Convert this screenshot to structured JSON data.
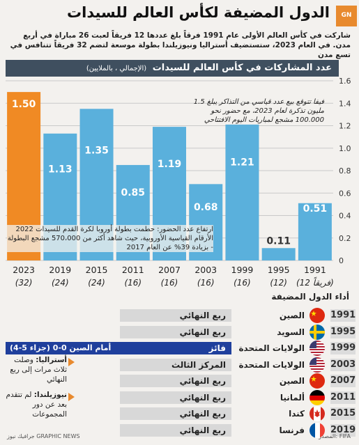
{
  "header": {
    "logo_text": "GN",
    "title": "الدول المضيفة لكأس العالم للسيدات",
    "subtitle": "شاركت في كأس العالم الأولى عام 1991 فرقاً بلغ عددها 12 فريقاً لعبت 26 مباراة في أربع مدن. في العام 2023، ستستضيف أستراليا ونيوزيلندا بطولة موسعة لتضم 32 فريقاً تتنافس في تسع مدن"
  },
  "chart_header": {
    "title": "عدد المشاركات في كأس العالم للسيدات",
    "units": "(الإجمالي ، بالملايين)"
  },
  "chart_data": {
    "type": "bar",
    "title": "عدد المشاركات في كأس العالم للسيدات",
    "ylabel": "(الإجمالي ، بالملايين)",
    "categories": [
      "2023",
      "2019",
      "2015",
      "2011",
      "2007",
      "2003",
      "1999",
      "1995",
      "1991"
    ],
    "teams": [
      "(32)",
      "(24)",
      "(24)",
      "(16)",
      "(16)",
      "(16)",
      "(16)",
      "(12)",
      "(12 فريقاً)"
    ],
    "values": [
      1.5,
      1.13,
      1.35,
      0.85,
      1.19,
      0.68,
      1.21,
      0.11,
      0.51
    ],
    "labels": [
      "1.50",
      "1.13",
      "1.35",
      "0.85",
      "1.19",
      "0.68",
      "1.21",
      "0.11",
      "0.51"
    ],
    "yticks": [
      "0",
      "0.2",
      "0.4",
      "0.6",
      "0.8",
      "1.0",
      "1.2",
      "1.4",
      "1.6"
    ],
    "ylim": [
      0,
      1.6
    ],
    "grid": true,
    "colors": {
      "highlight": "#f08a24",
      "bar": "#5ab0dc",
      "small_label": "#333333",
      "header_bg": "#3f4f5f"
    }
  },
  "annotations": {
    "tickets": "فيفا تتوقع بيع عدد قياسي من التذاكر يبلغ 1.5 مليون تذكرة لعام 2023، مع حضور نحو 100.000 مشجع لمباريات اليوم الافتتاحي",
    "euro": "ارتفاع عدد الحضور: حطمت بطولة أوروبا لكرة القدم للسيدات 2022 الأرقام القياسية الأوروبية، حيث شاهد أكثر من 570،000 مشجع البطولة - بزيادة 39% عن العام 2017"
  },
  "performance": {
    "header": "أداء الدول المضيفة",
    "rows": [
      {
        "year": "1991",
        "host": "الصين",
        "result": "ربع النهائي",
        "flag": "china"
      },
      {
        "year": "1995",
        "host": "السويد",
        "result": "ربع النهائي",
        "flag": "sweden"
      },
      {
        "year": "1999",
        "host": "الولايات المتحدة",
        "result": "فائز",
        "score": "أمام الصين 0-0 (جزاء 5-4)",
        "flag": "usa",
        "winner": true
      },
      {
        "year": "2003",
        "host": "الولايات المتحدة",
        "result": "المركز الثالث",
        "flag": "usa"
      },
      {
        "year": "2007",
        "host": "الصين",
        "result": "ربع النهائي",
        "flag": "china"
      },
      {
        "year": "2011",
        "host": "ألمانيا",
        "result": "ربع النهائي",
        "flag": "germany"
      },
      {
        "year": "2015",
        "host": "كندا",
        "result": "ربع النهائي",
        "flag": "canada"
      },
      {
        "year": "2019",
        "host": "فرنسا",
        "result": "ربع النهائي",
        "flag": "france"
      }
    ],
    "notes": {
      "australia_name": "أستراليا:",
      "australia_text": "وصلت ثلاث مرات إلى ربع النهائي",
      "nz_name": "نيوزيلندا:",
      "nz_text": "لم تتقدم بعد عن دور المجموعات"
    },
    "colors": {
      "winner_bg": "#1f3f9c",
      "result_bg": "#d8d8d8",
      "year_2023_highlight": "#f08a24"
    }
  },
  "footer": {
    "source": "المصدر: FIFA",
    "credit": "جرافيك نيوز GRAPHIC NEWS"
  }
}
